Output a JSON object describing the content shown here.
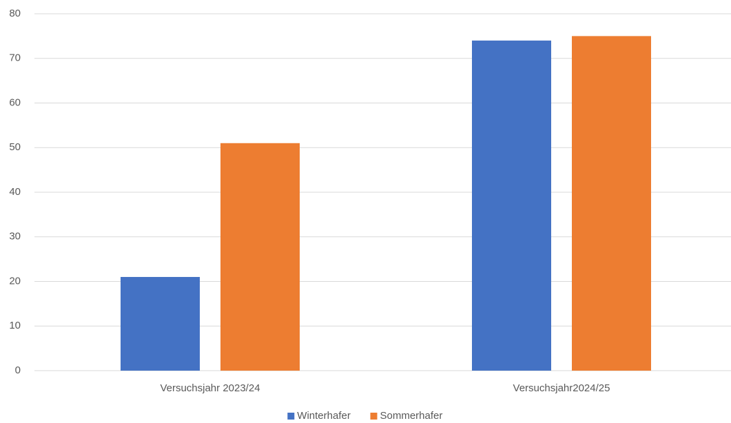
{
  "chart_data": {
    "type": "bar",
    "categories": [
      "Versuchsjahr 2023/24",
      "Versuchsjahr2024/25"
    ],
    "series": [
      {
        "name": "Winterhafer",
        "color": "#4472c4",
        "values": [
          21,
          74
        ]
      },
      {
        "name": "Sommerhafer",
        "color": "#ed7d31",
        "values": [
          51,
          75
        ]
      }
    ],
    "ylim": [
      0,
      80
    ],
    "yticks": [
      0,
      10,
      20,
      30,
      40,
      50,
      60,
      70,
      80
    ],
    "grid": true,
    "legend": "bottom"
  }
}
